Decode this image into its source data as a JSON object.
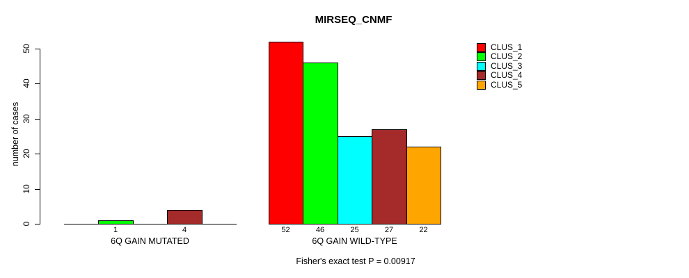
{
  "chart_data": {
    "type": "bar",
    "title": "MIRSEQ_CNMF",
    "ylabel": "number of cases",
    "ylim": [
      0,
      50
    ],
    "yticks": [
      0,
      10,
      20,
      30,
      40,
      50
    ],
    "grid": false,
    "legend_position": "right",
    "series": [
      "CLUS_1",
      "CLUS_2",
      "CLUS_3",
      "CLUS_4",
      "CLUS_5"
    ],
    "colors": [
      "#ff0000",
      "#00ff00",
      "#00ffff",
      "#a52a2a",
      "#ffa500"
    ],
    "groups": [
      {
        "label": "6Q GAIN MUTATED",
        "values": [
          0,
          1,
          0,
          4,
          0
        ]
      },
      {
        "label": "6Q GAIN WILD-TYPE",
        "values": [
          52,
          46,
          25,
          27,
          22
        ]
      }
    ],
    "zero_bars_hidden": true,
    "annotation": "Fisher's exact test P = 0.00917"
  }
}
